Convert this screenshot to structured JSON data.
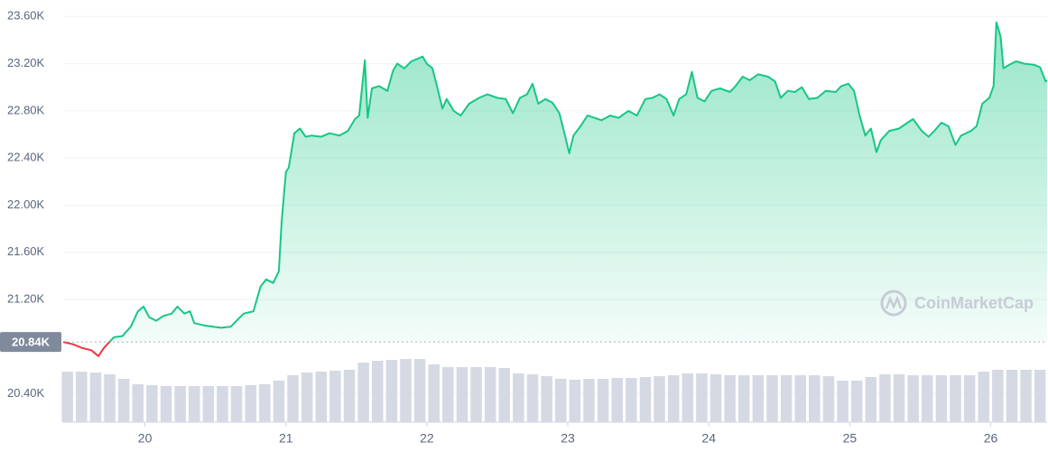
{
  "chart_data": {
    "type": "line",
    "watermark": "CoinMarketCap",
    "color": "#16c784",
    "down_color": "#ea3943",
    "baseline": {
      "value": 20840,
      "label": "20.84K"
    },
    "xlim": [
      19.42,
      26.4
    ],
    "xticks": [
      20,
      21,
      22,
      23,
      24,
      25,
      26
    ],
    "ylim": [
      20160,
      23740
    ],
    "yticks": [
      {
        "value": 20400,
        "label": "20.40K"
      },
      {
        "value": 21200,
        "label": "21.20K"
      },
      {
        "value": 21600,
        "label": "21.60K"
      },
      {
        "value": 22000,
        "label": "22.00K"
      },
      {
        "value": 22400,
        "label": "22.40K"
      },
      {
        "value": 22800,
        "label": "22.80K"
      },
      {
        "value": 23200,
        "label": "23.20K"
      },
      {
        "value": 23600,
        "label": "23.60K"
      }
    ],
    "grid": true,
    "x": [
      19.42,
      19.49,
      19.55,
      19.62,
      19.67,
      19.71,
      19.74,
      19.78,
      19.84,
      19.9,
      19.95,
      19.99,
      20.03,
      20.08,
      20.13,
      20.19,
      20.23,
      20.28,
      20.32,
      20.35,
      20.42,
      20.48,
      20.54,
      20.61,
      20.65,
      20.7,
      20.77,
      20.82,
      20.86,
      20.91,
      20.95,
      20.97,
      21.0,
      21.02,
      21.06,
      21.1,
      21.14,
      21.18,
      21.25,
      21.31,
      21.38,
      21.44,
      21.49,
      21.52,
      21.56,
      21.58,
      21.61,
      21.66,
      21.72,
      21.76,
      21.79,
      21.84,
      21.89,
      21.93,
      21.97,
      22.0,
      22.04,
      22.08,
      22.11,
      22.14,
      22.19,
      22.24,
      22.3,
      22.37,
      22.43,
      22.5,
      22.56,
      22.61,
      22.66,
      22.71,
      22.75,
      22.79,
      22.84,
      22.89,
      22.94,
      22.98,
      23.01,
      23.04,
      23.09,
      23.14,
      23.19,
      23.24,
      23.3,
      23.36,
      23.43,
      23.49,
      23.55,
      23.6,
      23.65,
      23.7,
      23.75,
      23.79,
      23.84,
      23.88,
      23.92,
      23.97,
      24.02,
      24.08,
      24.15,
      24.19,
      24.24,
      24.29,
      24.35,
      24.42,
      24.47,
      24.51,
      24.56,
      24.61,
      24.66,
      24.71,
      24.77,
      24.83,
      24.9,
      24.94,
      24.99,
      25.03,
      25.07,
      25.11,
      25.15,
      25.19,
      25.22,
      25.28,
      25.35,
      25.41,
      25.45,
      25.51,
      25.56,
      25.6,
      25.65,
      25.7,
      25.75,
      25.79,
      25.86,
      25.9,
      25.94,
      25.99,
      26.02,
      26.04,
      26.07,
      26.09,
      26.13,
      26.18,
      26.24,
      26.31,
      26.35,
      26.39,
      26.4
    ],
    "values": [
      20840,
      20820,
      20790,
      20770,
      20720,
      20790,
      20830,
      20880,
      20890,
      20970,
      21100,
      21140,
      21050,
      21020,
      21060,
      21080,
      21140,
      21080,
      21100,
      21000,
      20980,
      20970,
      20960,
      20970,
      21020,
      21080,
      21100,
      21310,
      21370,
      21340,
      21440,
      21860,
      22280,
      22320,
      22610,
      22650,
      22580,
      22590,
      22580,
      22610,
      22590,
      22630,
      22730,
      22760,
      23230,
      22740,
      22990,
      23010,
      22970,
      23140,
      23200,
      23160,
      23220,
      23240,
      23260,
      23200,
      23160,
      22970,
      22820,
      22900,
      22800,
      22760,
      22860,
      22910,
      22940,
      22910,
      22900,
      22780,
      22910,
      22940,
      23030,
      22860,
      22900,
      22870,
      22780,
      22590,
      22440,
      22590,
      22670,
      22760,
      22740,
      22720,
      22760,
      22740,
      22800,
      22760,
      22900,
      22910,
      22940,
      22900,
      22760,
      22900,
      22940,
      23130,
      22910,
      22880,
      22970,
      22990,
      22960,
      23010,
      23090,
      23060,
      23110,
      23090,
      23050,
      22910,
      22970,
      22960,
      23000,
      22900,
      22910,
      22970,
      22960,
      23010,
      23030,
      22970,
      22760,
      22590,
      22650,
      22450,
      22550,
      22630,
      22650,
      22700,
      22730,
      22630,
      22580,
      22630,
      22700,
      22670,
      22510,
      22590,
      22630,
      22670,
      22860,
      22910,
      23010,
      23550,
      23430,
      23160,
      23190,
      23220,
      23200,
      23190,
      23170,
      23050,
      23060
    ],
    "volume": {
      "color": "#d5d9e4",
      "x": [
        19.45,
        19.55,
        19.65,
        19.75,
        19.85,
        19.95,
        20.05,
        20.15,
        20.25,
        20.35,
        20.45,
        20.55,
        20.65,
        20.75,
        20.85,
        20.95,
        21.05,
        21.15,
        21.25,
        21.35,
        21.45,
        21.55,
        21.65,
        21.75,
        21.85,
        21.95,
        22.05,
        22.15,
        22.25,
        22.35,
        22.45,
        22.55,
        22.65,
        22.75,
        22.85,
        22.95,
        23.05,
        23.15,
        23.25,
        23.35,
        23.45,
        23.55,
        23.65,
        23.75,
        23.85,
        23.95,
        24.05,
        24.15,
        24.25,
        24.35,
        24.45,
        24.55,
        24.65,
        24.75,
        24.85,
        24.95,
        25.05,
        25.15,
        25.25,
        25.35,
        25.45,
        25.55,
        25.65,
        25.75,
        25.85,
        25.95,
        26.05,
        26.15,
        26.25,
        26.35
      ],
      "values": [
        56,
        56,
        55,
        53,
        48,
        42,
        41,
        40,
        40,
        40,
        40,
        40,
        40,
        41,
        42,
        46,
        52,
        55,
        56,
        57,
        58,
        66,
        68,
        69,
        70,
        70,
        64,
        61,
        61,
        61,
        61,
        60,
        54,
        53,
        51,
        48,
        47,
        48,
        48,
        49,
        49,
        50,
        51,
        52,
        54,
        54,
        53,
        52,
        52,
        52,
        52,
        52,
        52,
        52,
        51,
        46,
        46,
        50,
        53,
        53,
        52,
        52,
        52,
        52,
        52,
        56,
        58,
        58,
        58,
        58
      ]
    }
  }
}
